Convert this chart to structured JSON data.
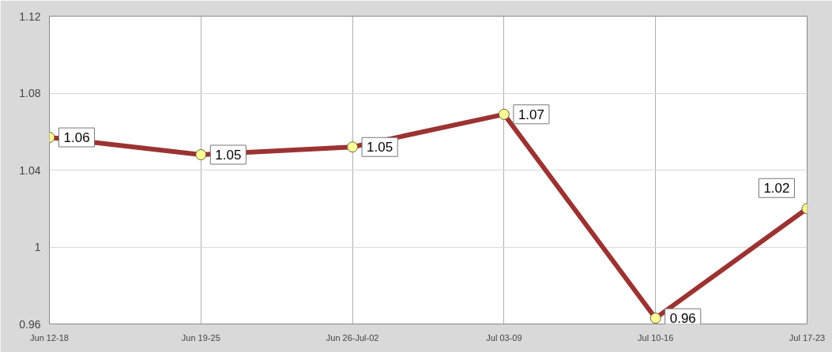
{
  "chart_data": {
    "type": "line",
    "categories": [
      "Jun 12-18",
      "Jun 19-25",
      "Jun 26-Jul-02",
      "Jul 03-09",
      "Jul 10-16",
      "Jul 17-23"
    ],
    "series": [
      {
        "color": "#9b3332",
        "values": [
          1.057,
          1.048,
          1.052,
          1.069,
          0.963,
          1.02
        ],
        "value_labels": [
          "1.06",
          "1.05",
          "1.05",
          "1.07",
          "0.96",
          "1.02"
        ]
      }
    ],
    "ylim": [
      0.96,
      1.12
    ],
    "yticks": [
      0.96,
      1.0,
      1.04,
      1.08,
      1.12
    ],
    "grid": true,
    "marker": "circle",
    "line_style": "solid"
  }
}
